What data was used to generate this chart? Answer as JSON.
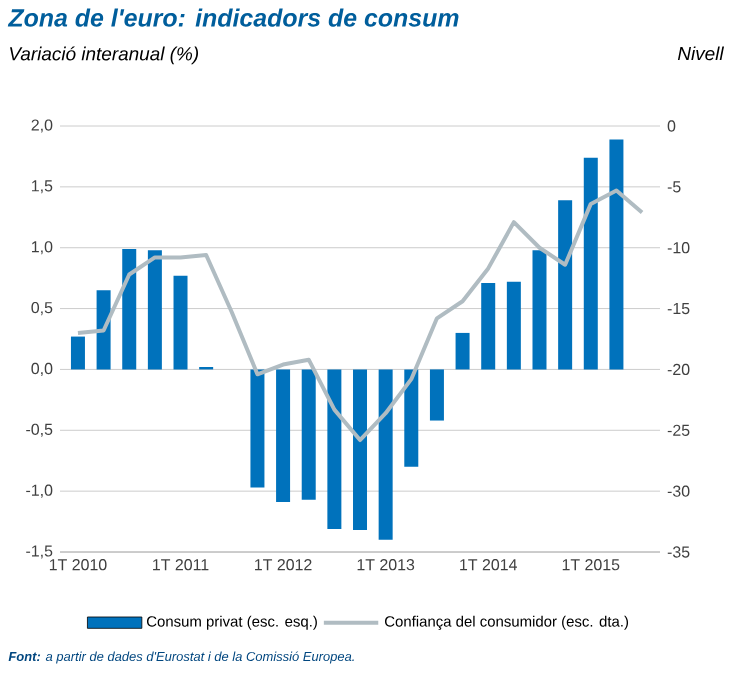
{
  "chart_data": {
    "type": "bar",
    "title": "Zona de l'euro: indicadors de consum",
    "ylabel": "Variació interanual (%)",
    "y2label": "Nivell",
    "categories": [
      "1T 2010",
      null,
      null,
      null,
      "1T 2011",
      null,
      null,
      null,
      "1T 2012",
      null,
      null,
      null,
      "1T 2013",
      null,
      null,
      null,
      "1T 2014",
      null,
      null,
      null,
      "1T 2015",
      null,
      null
    ],
    "series": [
      {
        "name": "Consum privat (esc. esq.)",
        "color": "#0072bc",
        "values": [
          0.27,
          0.65,
          0.99,
          0.98,
          0.77,
          0.02,
          0.0,
          -0.97,
          -1.09,
          -1.07,
          -1.31,
          -1.32,
          -1.4,
          -0.8,
          -0.42,
          0.3,
          0.71,
          0.72,
          0.98,
          1.39,
          1.74,
          1.89,
          null
        ]
      },
      {
        "name": "Confiança del consumidor (esc. dta.)",
        "type": "line",
        "axis": "y2",
        "color": "#b0bcc2",
        "values": [
          -17.0,
          -16.8,
          -12.2,
          -10.8,
          -10.8,
          -10.6,
          -15.3,
          -20.4,
          -19.6,
          -19.2,
          -23.3,
          -25.8,
          -23.6,
          -20.8,
          -15.8,
          -14.4,
          -11.7,
          -7.9,
          -10.0,
          -11.4,
          -6.4,
          -5.3,
          -7.1
        ]
      }
    ],
    "ylim": [
      -1.5,
      2.0
    ],
    "yticks": [
      {
        "value": -1.5,
        "label": "-1,5"
      },
      {
        "value": -1.0,
        "label": "-1,0"
      },
      {
        "value": -0.5,
        "label": "-0,5"
      },
      {
        "value": 0,
        "label": "0,0"
      },
      {
        "value": 0.5,
        "label": "0,5"
      },
      {
        "value": 1.0,
        "label": "1,0"
      },
      {
        "value": 1.5,
        "label": "1,5"
      },
      {
        "value": 2.0,
        "label": "2,0"
      }
    ],
    "y2lim": [
      -35,
      0
    ],
    "y2ticks": [
      -35,
      -30,
      -25,
      -20,
      -15,
      -10,
      -5,
      0
    ],
    "grid": "y",
    "legend": "bottom",
    "marker": "none",
    "annotations": [
      "**Font:** a partir de dades d'Eurostat i de la Comissió Europea."
    ]
  }
}
